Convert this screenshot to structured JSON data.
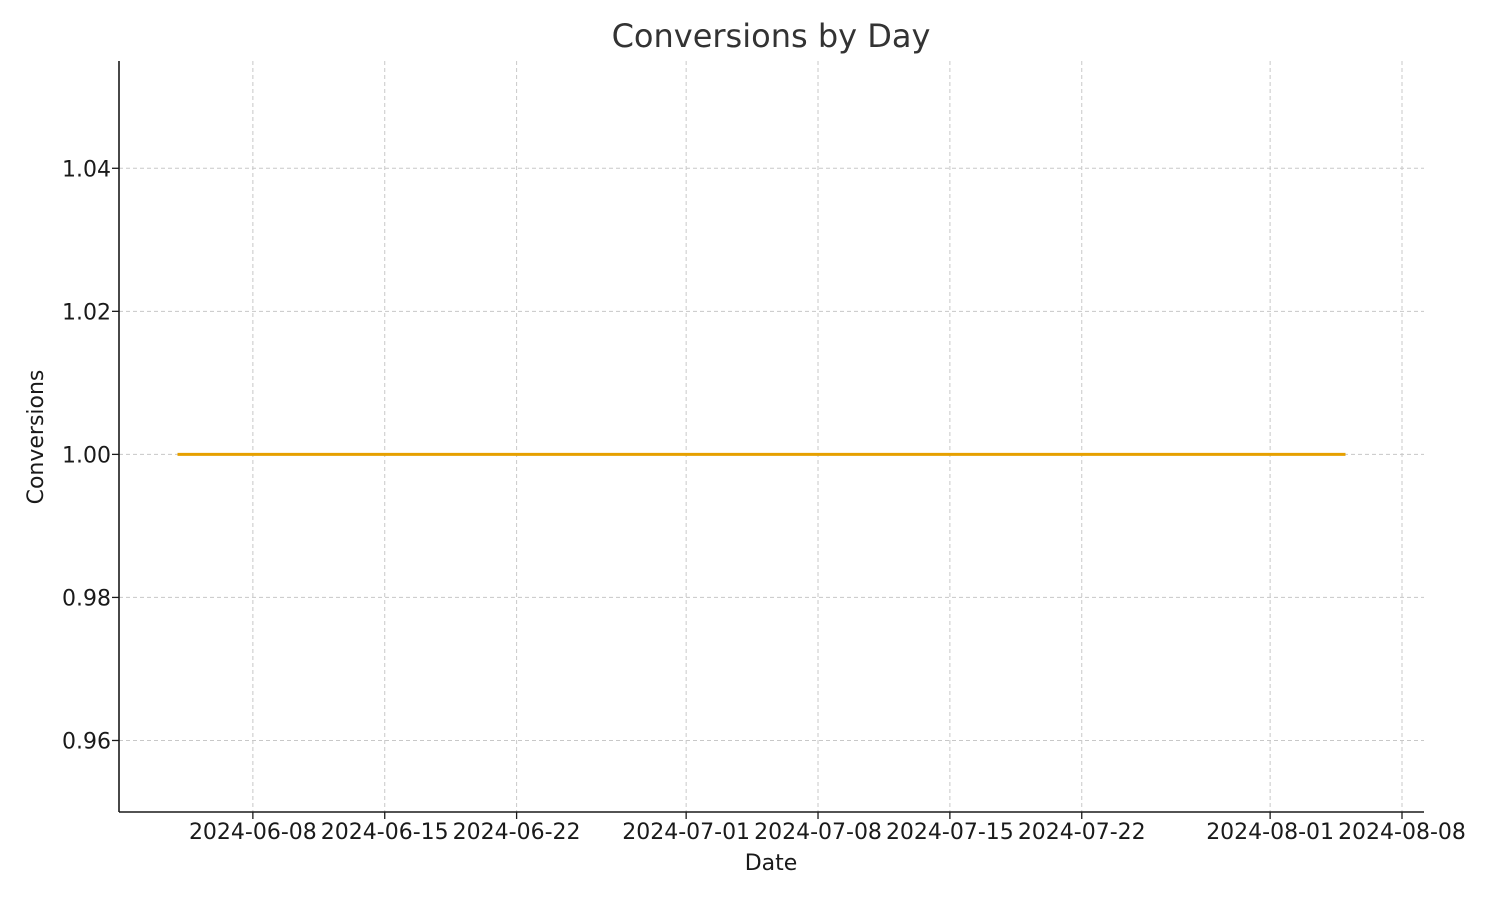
{
  "chart_data": {
    "type": "line",
    "title": "Conversions by Day",
    "xlabel": "Date",
    "ylabel": "Conversions",
    "x_start": "2024-06-04",
    "x_end": "2024-08-05",
    "x_range": [
      "2024-06-01",
      "2024-08-08"
    ],
    "ylim": [
      0.95,
      1.055
    ],
    "x_ticks": [
      "2024-06-08",
      "2024-06-15",
      "2024-06-22",
      "2024-07-01",
      "2024-07-08",
      "2024-07-15",
      "2024-07-22",
      "2024-08-01",
      "2024-08-08"
    ],
    "y_ticks": [
      "0.96",
      "0.98",
      "1.00",
      "1.02",
      "1.04"
    ],
    "grid": true,
    "series": [
      {
        "values": [
          1.0,
          1.0
        ],
        "color": "#e6a000"
      }
    ]
  }
}
